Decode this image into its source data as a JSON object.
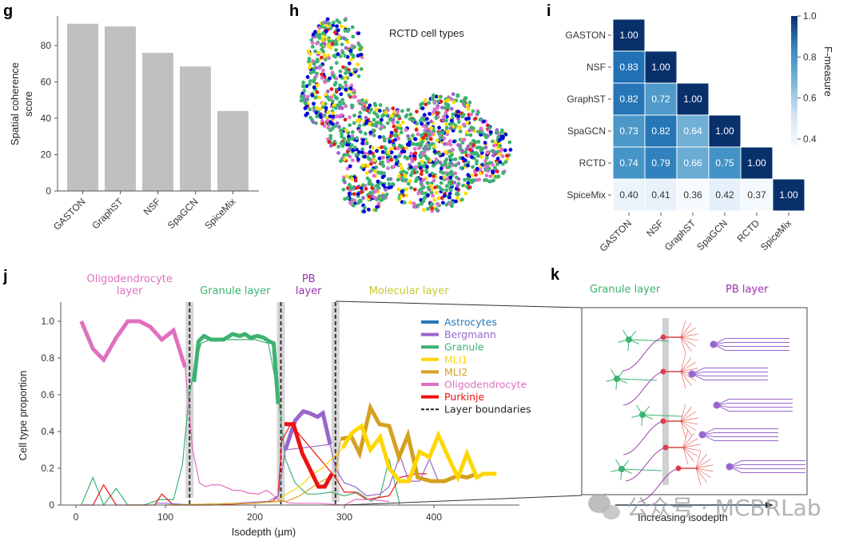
{
  "panels": {
    "g": "g",
    "h": "h",
    "i": "i",
    "j": "j",
    "k": "k"
  },
  "chart_data": [
    {
      "id": "g",
      "type": "bar",
      "title": "",
      "xlabel": "",
      "ylabel": "Spatial coherence\nscore",
      "ylabel_lines": [
        "Spatial coherence",
        "score"
      ],
      "categories": [
        "GASTON",
        "GraphST",
        "NSF",
        "SpaGCN",
        "SpiceMix"
      ],
      "values": [
        92,
        90.5,
        76,
        68.5,
        44
      ],
      "ylim": [
        0,
        96
      ],
      "yticks": [
        0,
        20,
        40,
        60,
        80
      ],
      "bar_color": "#c0c0c0",
      "grid": false
    },
    {
      "id": "h",
      "type": "scatter",
      "title": "RCTD cell types",
      "point_colors": [
        "#3cb371",
        "#0000dd",
        "#ffdd00",
        "#e070c8",
        "#e02020",
        "#9966cc"
      ]
    },
    {
      "id": "i",
      "type": "heatmap",
      "rows": [
        "GASTON",
        "NSF",
        "GraphST",
        "SpaGCN",
        "RCTD",
        "SpiceMix"
      ],
      "cols": [
        "GASTON",
        "NSF",
        "GraphST",
        "SpaGCN",
        "RCTD",
        "SpiceMix"
      ],
      "values": [
        [
          1.0
        ],
        [
          0.83,
          1.0
        ],
        [
          0.82,
          0.72,
          1.0
        ],
        [
          0.73,
          0.82,
          0.64,
          1.0
        ],
        [
          0.74,
          0.79,
          0.66,
          0.75,
          1.0
        ],
        [
          0.4,
          0.41,
          0.36,
          0.42,
          0.37,
          1.0
        ]
      ],
      "colorbar": {
        "label": "F-measure",
        "range": [
          0.36,
          1.0
        ],
        "ticks": [
          "1.0",
          "0.8",
          "0.6",
          "0.4"
        ],
        "tick_values": [
          1.0,
          0.8,
          0.6,
          0.4
        ]
      },
      "colormap": [
        "#f7fbff",
        "#deebf7",
        "#9ecae1",
        "#4292c6",
        "#2171b5",
        "#08306b"
      ]
    },
    {
      "id": "j",
      "type": "line",
      "xlabel": "Isodepth (µm)",
      "ylabel": "Cell type proportion",
      "xlim": [
        -10,
        490
      ],
      "ylim": [
        0,
        1.1
      ],
      "xticks": [
        0,
        100,
        200,
        300,
        400
      ],
      "yticks": [
        "0",
        "0.2",
        "0.4",
        "0.6",
        "0.8",
        "1.0"
      ],
      "ytick_values": [
        0,
        0.2,
        0.4,
        0.6,
        0.8,
        1.0
      ],
      "layer_boundaries": [
        127,
        229,
        290
      ],
      "layer_labels": [
        {
          "lines": [
            "Oligodendrocyte",
            "layer"
          ],
          "color": "#e070c0",
          "x": 60
        },
        {
          "lines": [
            "Granule layer"
          ],
          "color": "#3cb371",
          "x": 178
        },
        {
          "lines": [
            "PB",
            "layer"
          ],
          "color": "#9b30b0",
          "x": 260
        },
        {
          "lines": [
            "Molecular layer"
          ],
          "color": "#c8c832",
          "x": 372
        }
      ],
      "legend": {
        "placement": "right",
        "items": [
          {
            "label": "Astrocytes",
            "color": "#2878b8",
            "style": "solid"
          },
          {
            "label": "Bergmann",
            "color": "#9966cc",
            "style": "solid"
          },
          {
            "label": "Granule",
            "color": "#3cb371",
            "style": "solid"
          },
          {
            "label": "MLI1",
            "color": "#ffd700",
            "style": "solid"
          },
          {
            "label": "MLI2",
            "color": "#d4a020",
            "style": "solid"
          },
          {
            "label": "Oligodendrocyte",
            "color": "#e070c0",
            "style": "solid"
          },
          {
            "label": "Purkinje",
            "color": "#ee1111",
            "style": "solid"
          },
          {
            "label": "Layer boundaries",
            "color": "#222222",
            "style": "dashed"
          }
        ]
      },
      "series": [
        {
          "name": "Oligodendrocyte (layer)",
          "color": "#e070c0",
          "thick": true,
          "x": [
            6,
            19,
            31,
            45,
            58,
            71,
            83,
            96,
            109,
            122
          ],
          "y": [
            1.0,
            0.85,
            0.79,
            0.91,
            1.0,
            1.0,
            0.97,
            0.9,
            0.95,
            0.75
          ]
        },
        {
          "name": "Granule (layer)",
          "color": "#3cb371",
          "thick": true,
          "x": [
            132,
            137,
            143,
            151,
            165,
            175,
            183,
            189,
            195,
            203,
            210,
            216,
            221,
            226
          ],
          "y": [
            0.67,
            0.89,
            0.92,
            0.9,
            0.9,
            0.93,
            0.92,
            0.93,
            0.91,
            0.92,
            0.91,
            0.89,
            0.88,
            0.55
          ]
        },
        {
          "name": "Bergmann (layer)",
          "color": "#9966cc",
          "thick": true,
          "x": [
            234,
            245,
            254,
            261,
            270,
            276,
            284
          ],
          "y": [
            0.3,
            0.46,
            0.51,
            0.5,
            0.48,
            0.5,
            0.33
          ]
        },
        {
          "name": "Purkinje (layer)",
          "color": "#ee1111",
          "thick": true,
          "x": [
            233,
            243,
            253,
            264,
            271,
            278,
            286
          ],
          "y": [
            0.44,
            0.44,
            0.28,
            0.17,
            0.1,
            0.1,
            0.17
          ]
        },
        {
          "name": "MLI2 (layer)",
          "color": "#d4a020",
          "thick": true,
          "x": [
            296,
            308,
            317,
            329,
            339,
            350,
            361,
            371,
            382,
            397,
            412,
            427,
            437,
            448
          ],
          "y": [
            0.36,
            0.37,
            0.28,
            0.53,
            0.44,
            0.43,
            0.26,
            0.38,
            0.15,
            0.13,
            0.13,
            0.16,
            0.15,
            0.17
          ]
        },
        {
          "name": "MLI1 (layer)",
          "color": "#ffd700",
          "thick": true,
          "x": [
            298,
            308,
            319,
            329,
            340,
            350,
            362,
            372,
            384,
            395,
            405,
            418,
            427,
            437,
            448,
            455,
            470
          ],
          "y": [
            0.31,
            0.39,
            0.43,
            0.3,
            0.37,
            0.2,
            0.13,
            0.13,
            0.29,
            0.26,
            0.38,
            0.24,
            0.15,
            0.28,
            0.15,
            0.17,
            0.17
          ]
        },
        {
          "name": "Granule",
          "color": "#3cb371",
          "thick": false,
          "x": [
            6,
            19,
            31,
            45,
            58,
            76,
            94,
            109,
            119,
            126,
            132,
            140,
            150,
            165,
            180,
            200,
            215,
            226,
            234,
            245,
            258,
            270,
            285,
            300,
            315,
            330,
            340,
            350,
            362
          ],
          "y": [
            0,
            0.15,
            0,
            0.09,
            0,
            0,
            0.03,
            0.03,
            0.22,
            0.57,
            0.75,
            0.88,
            0.9,
            0.9,
            0.9,
            0.9,
            0.88,
            0.6,
            0.25,
            0.12,
            0.06,
            0.06,
            0.07,
            0.05,
            0.07,
            0.02,
            0.05,
            0.25,
            0.0
          ]
        },
        {
          "name": "Purkinje",
          "color": "#ee1111",
          "thick": false,
          "x": [
            6,
            19,
            31,
            45,
            88,
            96,
            109,
            150,
            200,
            220,
            226,
            230,
            240,
            290,
            300,
            312,
            325,
            350,
            362,
            380,
            392
          ],
          "y": [
            0,
            0,
            0.11,
            0,
            0,
            0.06,
            0,
            0,
            0.01,
            0.02,
            0.05,
            0.35,
            0.44,
            0.15,
            0.07,
            0.07,
            0.03,
            0.05,
            0.15,
            0.17,
            0.17
          ]
        },
        {
          "name": "Oligodendrocyte",
          "color": "#e070c0",
          "thick": false,
          "x": [
            122,
            127,
            130,
            138,
            145,
            152,
            161,
            176,
            183,
            193,
            204,
            213,
            219,
            226,
            240,
            270,
            300,
            312,
            330,
            350
          ],
          "y": [
            0.75,
            0.5,
            0.31,
            0.12,
            0.1,
            0.11,
            0.11,
            0.08,
            0.08,
            0.065,
            0.06,
            0.08,
            0.06,
            0.03,
            0.01,
            0.01,
            0.0,
            0.03,
            0.03,
            0.02
          ]
        },
        {
          "name": "Bergmann",
          "color": "#9966cc",
          "thick": false,
          "x": [
            90,
            100,
            130,
            180,
            215,
            226,
            234,
            284,
            290,
            300,
            312,
            325,
            340,
            350,
            362,
            372,
            384,
            395,
            405
          ],
          "y": [
            0.01,
            0.01,
            0,
            0.01,
            0.02,
            0.05,
            0.3,
            0.33,
            0.2,
            0.12,
            0.1,
            0.05,
            0.06,
            0.1,
            0.27,
            0.13,
            0.13,
            0.25,
            0.13
          ]
        },
        {
          "name": "MLI1",
          "color": "#ffd700",
          "thick": false,
          "x": [
            100,
            200,
            226,
            235,
            250,
            265,
            275,
            290,
            298
          ],
          "y": [
            0,
            0.01,
            0.02,
            0.06,
            0.1,
            0.17,
            0.2,
            0.27,
            0.31
          ]
        },
        {
          "name": "MLI2",
          "color": "#d4a020",
          "thick": false,
          "x": [
            100,
            200,
            226,
            235,
            250,
            265,
            275,
            290,
            296
          ],
          "y": [
            0,
            0.01,
            0.02,
            0.02,
            0.05,
            0.1,
            0.13,
            0.17,
            0.36
          ]
        }
      ]
    }
  ],
  "diagram_k": {
    "labels": {
      "granule": "Granule layer",
      "pb": "PB layer",
      "arrow": "Increasing isodepth"
    },
    "colors": {
      "granule": "#3cb371",
      "pb": "#9b30b0",
      "purkinje": "#e04040",
      "bergmann": "#9966cc",
      "axon": "#a040b0"
    }
  },
  "watermark": "公众号 · MCBRLab"
}
